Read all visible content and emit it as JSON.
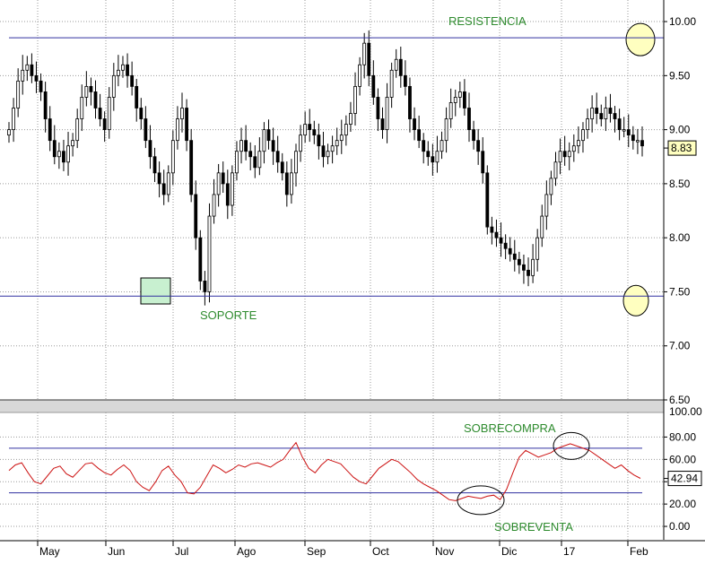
{
  "colors": {
    "background": "#ffffff",
    "grid": "#9a9a9a",
    "candle": "#000000",
    "level_line": "#3030a0",
    "annotation_text": "#2e8b2e",
    "rsi_line": "#cc1111",
    "separator": "#d8d8d8",
    "highlight_circle": "#ffffc0",
    "highlight_box": "#c8f0d0"
  },
  "chart_data": [
    {
      "type": "candlestick",
      "ylim": [
        6.5,
        10.1
      ],
      "y_ticks": [
        "10.00",
        "9.50",
        "9.00",
        "8.50",
        "8.00",
        "7.50",
        "7.00",
        "6.50"
      ],
      "x_ticks": [
        "May",
        "Jun",
        "Jul",
        "Ago",
        "Sep",
        "Oct",
        "Nov",
        "Dic",
        "17",
        "Feb"
      ],
      "last_value_label": "8.83",
      "annotations": [
        {
          "label": "RESISTENCIA",
          "value": 9.85
        },
        {
          "label": "SOPORTE",
          "value": 7.46
        }
      ],
      "close_series": [
        9.0,
        9.2,
        9.45,
        9.55,
        9.6,
        9.5,
        9.45,
        9.35,
        9.1,
        8.9,
        8.75,
        8.8,
        8.7,
        8.85,
        8.9,
        9.1,
        9.3,
        9.4,
        9.35,
        9.2,
        9.1,
        9.0,
        9.3,
        9.5,
        9.55,
        9.6,
        9.5,
        9.4,
        9.2,
        9.1,
        8.9,
        8.75,
        8.6,
        8.5,
        8.4,
        8.6,
        8.9,
        9.1,
        9.2,
        8.9,
        8.4,
        8.0,
        7.6,
        7.5,
        8.2,
        8.4,
        8.6,
        8.5,
        8.3,
        8.6,
        8.8,
        8.9,
        8.8,
        8.75,
        8.65,
        8.8,
        9.0,
        8.9,
        8.8,
        8.7,
        8.6,
        8.4,
        8.6,
        8.8,
        8.95,
        9.05,
        9.0,
        8.95,
        8.85,
        8.75,
        8.8,
        8.85,
        8.9,
        8.95,
        9.05,
        9.15,
        9.4,
        9.6,
        9.8,
        9.5,
        9.3,
        9.1,
        9.0,
        9.3,
        9.55,
        9.65,
        9.5,
        9.4,
        9.1,
        9.0,
        8.9,
        8.8,
        8.75,
        8.7,
        8.8,
        8.9,
        9.1,
        9.25,
        9.3,
        9.35,
        9.2,
        9.0,
        8.9,
        8.8,
        8.6,
        8.1,
        8.05,
        8.0,
        7.95,
        7.9,
        7.85,
        7.8,
        7.75,
        7.7,
        7.65,
        7.8,
        8.0,
        8.2,
        8.4,
        8.55,
        8.7,
        8.8,
        8.75,
        8.8,
        8.85,
        8.9,
        9.0,
        9.1,
        9.2,
        9.15,
        9.1,
        9.2,
        9.15,
        9.1,
        9.0,
        9.0,
        8.95,
        8.9,
        8.9,
        8.85
      ]
    },
    {
      "type": "line",
      "ylim": [
        -12,
        102
      ],
      "y_ticks": [
        "80.00",
        "60.00",
        "40.00",
        "20.00",
        "0.00"
      ],
      "top_tick_partial": "100.00",
      "last_value_label": "42.94",
      "annotations": [
        {
          "label": "SOBRECOMPRA",
          "value": 70
        },
        {
          "label": "SOBREVENTA",
          "value": 30
        }
      ],
      "series": [
        {
          "values": [
            50,
            55,
            57,
            48,
            40,
            38,
            45,
            52,
            54,
            47,
            44,
            50,
            56,
            57,
            52,
            48,
            46,
            51,
            55,
            50,
            40,
            35,
            32,
            40,
            50,
            54,
            46,
            40,
            30,
            29,
            35,
            45,
            55,
            52,
            48,
            51,
            55,
            53,
            56,
            57,
            55,
            53,
            57,
            60,
            68,
            75,
            62,
            52,
            48,
            55,
            60,
            58,
            56,
            50,
            44,
            40,
            38,
            45,
            52,
            56,
            60,
            58,
            53,
            48,
            42,
            38,
            35,
            32,
            28,
            24,
            23,
            25,
            27,
            26,
            25,
            27,
            28,
            24,
            33,
            48,
            62,
            68,
            65,
            62,
            64,
            66,
            70,
            72,
            74,
            72,
            70,
            68,
            64,
            60,
            56,
            52,
            55,
            50,
            46,
            43
          ]
        }
      ]
    }
  ]
}
